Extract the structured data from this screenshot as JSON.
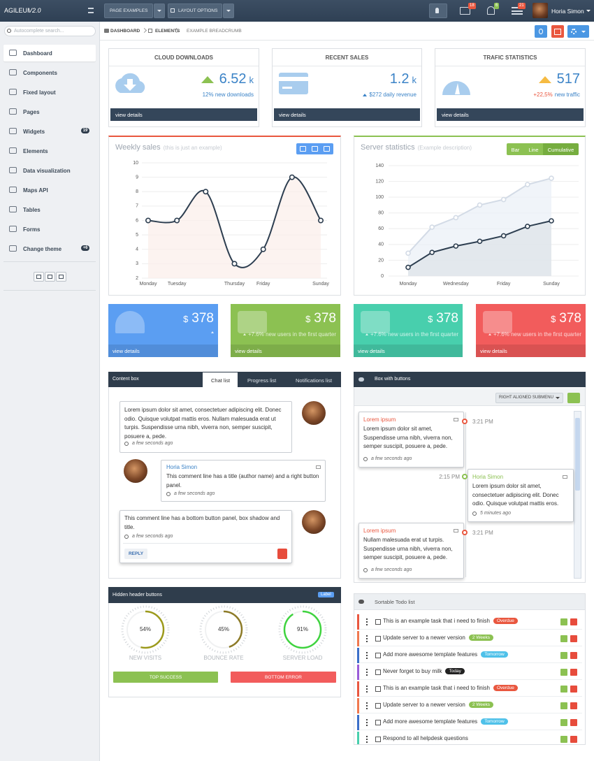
{
  "header": {
    "brand": "AGILEUI",
    "version": "V2.0",
    "buttons": [
      "PAGE EXAMPLES",
      "LAYOUT OPTIONS"
    ],
    "badges": [
      "18",
      "6",
      "21"
    ],
    "user": "Horia Simon"
  },
  "sidebar": {
    "search_placeholder": "Autocomplete search...",
    "menu": [
      {
        "label": "Dashboard"
      },
      {
        "label": "Components"
      },
      {
        "label": "Fixed layout"
      },
      {
        "label": "Pages"
      },
      {
        "label": "Widgets",
        "badge": "19"
      },
      {
        "label": "Elements"
      },
      {
        "label": "Data visualization"
      },
      {
        "label": "Maps API"
      },
      {
        "label": "Tables"
      },
      {
        "label": "Forms"
      },
      {
        "label": "Change theme",
        "badge": "+6"
      }
    ]
  },
  "breadcrumb": [
    "DASHBOARD",
    "ELEMENTS",
    "EXAMPLE BREADCRUMB"
  ],
  "stats": [
    {
      "title": "CLOUD DOWNLOADS",
      "value": "6.52",
      "unit": "k",
      "note": "12% new downloads",
      "link": "view details"
    },
    {
      "title": "RECENT SALES",
      "value": "1.2",
      "unit": "k",
      "note": "$272 daily revenue",
      "link": "view details"
    },
    {
      "title": "TRAFIC STATISTICS",
      "value": "517",
      "note_highlight": "+22,5%",
      "note": "new traffic",
      "link": "view details"
    }
  ],
  "weekly_sales": {
    "type": "line",
    "title": "Weekly sales",
    "subtitle": "(this is just an example)",
    "categories": [
      "Monday",
      "Tuesday",
      null,
      "Thursday",
      "Friday",
      null,
      "Sunday"
    ],
    "values": [
      6,
      6,
      8,
      3,
      4,
      9,
      6
    ],
    "color": "#2d3e50",
    "ylim": [
      2,
      10
    ],
    "yticks": [
      2,
      3,
      4,
      5,
      6,
      7,
      8,
      9,
      10
    ],
    "grid": true
  },
  "server_stats": {
    "type": "line",
    "title": "Server statistics",
    "subtitle": "(Example description)",
    "buttons": [
      "Bar",
      "Line",
      "Cumulative"
    ],
    "categories": [
      "Monday",
      null,
      "Wednesday",
      null,
      "Friday",
      null,
      "Sunday"
    ],
    "series": [
      {
        "color": "#d3dbe6",
        "values": [
          29,
          62,
          74,
          90,
          97,
          116,
          124
        ]
      },
      {
        "color": "#2d3e50",
        "values": [
          11,
          30,
          38,
          44,
          51,
          63,
          70
        ]
      }
    ],
    "ylim": [
      0,
      140
    ],
    "yticks": [
      0,
      20,
      40,
      60,
      80,
      100,
      120,
      140
    ],
    "grid": true
  },
  "tiles": [
    {
      "currency": "$",
      "value": "378",
      "link": "view details",
      "color": "#5b9ef2"
    },
    {
      "currency": "$",
      "value": "378",
      "note": "+7.6% new users in the first quarter",
      "link": "view details",
      "color": "#8cc152"
    },
    {
      "currency": "$",
      "value": "378",
      "note": "+7.6% new users in the first quarter",
      "link": "view details",
      "color": "#48cfad"
    },
    {
      "currency": "$",
      "value": "378",
      "note": "+7.6% new users in the first quarter",
      "link": "view details",
      "color": "#f25c5c"
    }
  ],
  "content_box": {
    "title": "Content box",
    "tabs": [
      "Chat list",
      "Progress list",
      "Notifications list"
    ],
    "messages": [
      {
        "text": "Lorem ipsum dolor sit amet, consectetuer adipiscing elit. Donec odio. Quisque volutpat mattis eros. Nullam malesuada erat ut turpis. Suspendisse urna nibh, viverra non, semper suscipit, posuere a, pede.",
        "time": "a few seconds ago"
      },
      {
        "author": "Horia Simon",
        "text": "This comment line has a title (author name) and a right button panel.",
        "time": "a few seconds ago"
      },
      {
        "text": "This comment line has a bottom button panel, box shadow and title.",
        "time": "a few seconds ago",
        "button": "REPLY"
      }
    ]
  },
  "button_box": {
    "title": "Box with buttons",
    "submenu": "RIGHT ALIGNED SUBMENU",
    "timeline": [
      {
        "title": "Lorem ipsum",
        "text": "Lorem ipsum dolor sit amet, Suspendisse urna nibh, viverra non, semper suscipit, posuere a, pede.",
        "time": "a few seconds ago",
        "clock": "3:21 PM"
      },
      {
        "title": "Horia Simon",
        "text": "Lorem ipsum dolor sit amet, consectetuer adipiscing elit. Donec odio. Quisque volutpat mattis eros.",
        "time": "5 minutes ago",
        "clock": "2:15 PM"
      },
      {
        "title": "Lorem ipsum",
        "text": "Nullam malesuada erat ut turpis. Suspendisse urna nibh, viverra non, semper suscipit, posuere a, pede.",
        "time": "a few seconds ago",
        "clock": "3:21 PM"
      }
    ]
  },
  "hidden_header_box": {
    "title": "Hidden header buttons",
    "label": "Label",
    "gauges": [
      {
        "value": 54,
        "label": "54%",
        "name": "NEW VISITS",
        "color": "#9c9a1c"
      },
      {
        "value": 45,
        "label": "45%",
        "name": "BOUNCE RATE",
        "color": "#8d7b28"
      },
      {
        "value": 91,
        "label": "91%",
        "name": "SERVER LOAD",
        "color": "#3fd33f"
      }
    ],
    "buttons": [
      "TOP SUCCESS",
      "BOTTOM ERROR"
    ]
  },
  "todo": {
    "title": "Sortable Todo list",
    "items": [
      {
        "text": "This is an example task that i need to finish",
        "tag": "Overdue",
        "tag_color": "#e9573f",
        "accent": "#e9573f"
      },
      {
        "text": "Update server to a newer version",
        "tag": "2 Weeks",
        "tag_color": "#8cc152",
        "accent": "#f0784f"
      },
      {
        "text": "Add more awesome template features",
        "tag": "Tomorrow",
        "tag_color": "#4fc1e9",
        "accent": "#3b6fc9"
      },
      {
        "text": "Never forget to buy milk",
        "tag": "Today",
        "tag_color": "#222222",
        "accent": "#9a5cd8"
      },
      {
        "text": "This is an example task that i need to finish",
        "tag": "Overdue",
        "tag_color": "#e9573f",
        "accent": "#e9573f"
      },
      {
        "text": "Update server to a newer version",
        "tag": "2 Weeks",
        "tag_color": "#8cc152",
        "accent": "#f0784f"
      },
      {
        "text": "Add more awesome template features",
        "tag": "Tomorrow",
        "tag_color": "#4fc1e9",
        "accent": "#3b6fc9"
      },
      {
        "text": "Respond to all helpdesk questions",
        "accent": "#48cfad"
      }
    ]
  }
}
